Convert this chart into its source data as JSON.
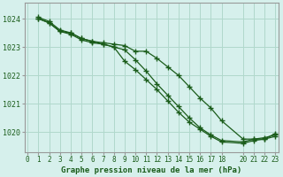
{
  "bg_color": "#d6f0ec",
  "grid_color": "#b0d8cc",
  "line_color": "#1a5c1a",
  "title": "Graphe pression niveau de la mer (hPa)",
  "xlim": [
    -0.3,
    23.3
  ],
  "ylim": [
    1019.3,
    1024.55
  ],
  "yticks": [
    1020,
    1021,
    1022,
    1023,
    1024
  ],
  "xticks": [
    0,
    1,
    2,
    3,
    4,
    5,
    6,
    7,
    8,
    9,
    10,
    11,
    12,
    13,
    14,
    15,
    16,
    17,
    18,
    20,
    21,
    22,
    23
  ],
  "series_x": [
    [
      1,
      2,
      3,
      4,
      5,
      6,
      7,
      8,
      9,
      10,
      11,
      12,
      13,
      14,
      15,
      16,
      17,
      18,
      20,
      21,
      22,
      23
    ],
    [
      1,
      2,
      3,
      4,
      5,
      6,
      7,
      8,
      9,
      10,
      11,
      12,
      13,
      14,
      15,
      16,
      17,
      18,
      20,
      21,
      22,
      23
    ],
    [
      1,
      2,
      3,
      4,
      5,
      6,
      7,
      8,
      9,
      10,
      11,
      12,
      13,
      14,
      15,
      16,
      17,
      18,
      20,
      21,
      22,
      23
    ]
  ],
  "series": [
    [
      1024.0,
      1023.85,
      1023.55,
      1023.5,
      1023.3,
      1023.2,
      1023.15,
      1023.1,
      1023.05,
      1022.85,
      1022.85,
      1022.6,
      1022.3,
      1022.0,
      1021.6,
      1021.2,
      1020.85,
      1020.4,
      1019.75,
      1019.75,
      1019.75,
      1019.85
    ],
    [
      1024.0,
      1023.85,
      1023.55,
      1023.45,
      1023.25,
      1023.15,
      1023.1,
      1023.0,
      1022.9,
      1022.55,
      1022.15,
      1021.7,
      1021.3,
      1020.9,
      1020.5,
      1020.15,
      1019.9,
      1019.7,
      1019.65,
      1019.75,
      1019.8,
      1019.9
    ],
    [
      1024.05,
      1023.9,
      1023.6,
      1023.5,
      1023.3,
      1023.2,
      1023.1,
      1023.0,
      1022.5,
      1022.2,
      1021.85,
      1021.5,
      1021.1,
      1020.7,
      1020.35,
      1020.1,
      1019.85,
      1019.65,
      1019.6,
      1019.7,
      1019.75,
      1019.95
    ]
  ],
  "title_fontsize": 6.5,
  "tick_fontsize": 5.5,
  "ytick_fontsize": 6.0
}
